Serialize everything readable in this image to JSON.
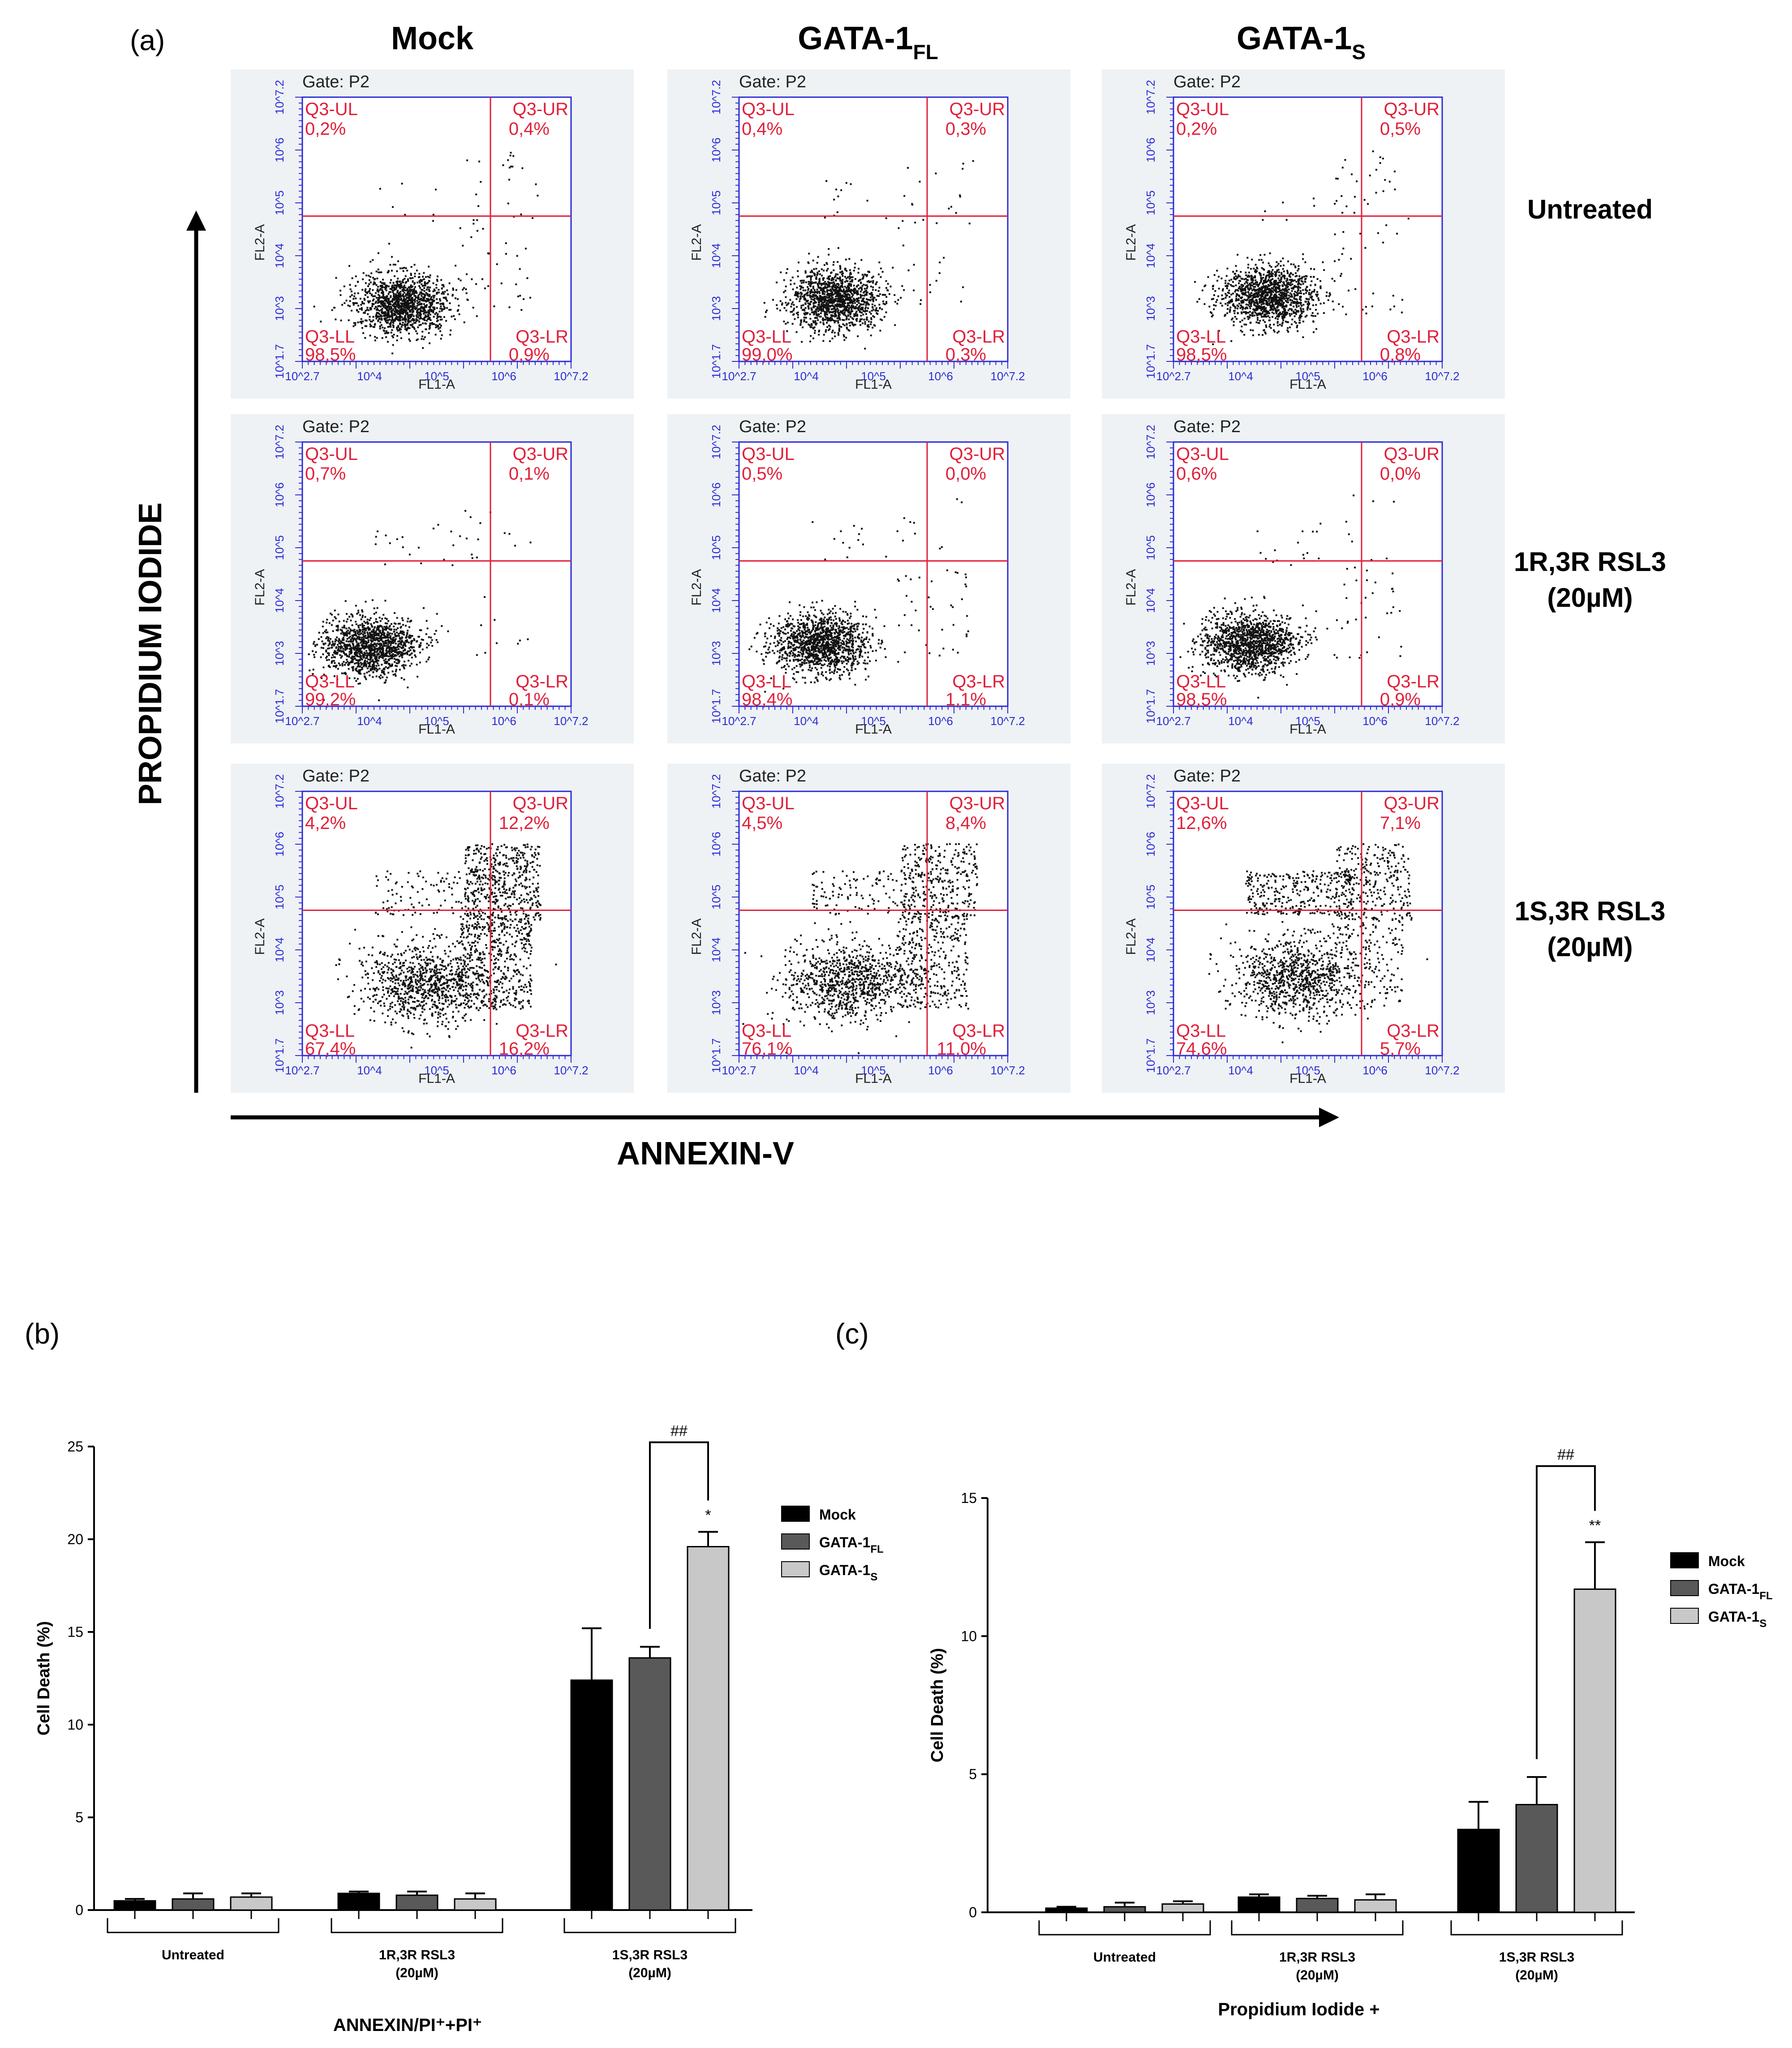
{
  "panel_a": {
    "label": "(a)",
    "columns": [
      {
        "base": "Mock",
        "sub": ""
      },
      {
        "base": "GATA-1",
        "sub": "FL"
      },
      {
        "base": "GATA-1",
        "sub": "S"
      }
    ],
    "rows": [
      {
        "line1": "Untreated",
        "line2": ""
      },
      {
        "line1": "1R,3R RSL3",
        "line2": "(20µM)"
      },
      {
        "line1": "1S,3R RSL3",
        "line2": "(20µM)"
      }
    ],
    "y_axis_title": "PROPIDIUM IODIDE",
    "x_axis_title": "ANNEXIN-V",
    "gate_label": "Gate: P2",
    "quadrant_names": {
      "ul": "Q3-UL",
      "ur": "Q3-UR",
      "ll": "Q3-LL",
      "lr": "Q3-LR"
    },
    "x_channel": "FL1-A",
    "y_channel": "FL2-A",
    "x_range": [
      "10^2.7",
      "10^7.2"
    ],
    "y_range": [
      "10^1.7",
      "10^7.2"
    ],
    "x_major_ticks": [
      "10^4",
      "10^5",
      "10^6"
    ],
    "y_major_ticks": [
      "10^3",
      "10^4",
      "10^5",
      "10^6"
    ],
    "plots": [
      [
        {
          "ul": "0,2%",
          "ur": "0,4%",
          "ll": "98,5%",
          "lr": "0,9%"
        },
        {
          "ul": "0,4%",
          "ur": "0,3%",
          "ll": "99,0%",
          "lr": "0,3%"
        },
        {
          "ul": "0,2%",
          "ur": "0,5%",
          "ll": "98,5%",
          "lr": "0,8%"
        }
      ],
      [
        {
          "ul": "0,7%",
          "ur": "0,1%",
          "ll": "99,2%",
          "lr": "0,1%"
        },
        {
          "ul": "0,5%",
          "ur": "0,0%",
          "ll": "98,4%",
          "lr": "1,1%"
        },
        {
          "ul": "0,6%",
          "ur": "0,0%",
          "ll": "98,5%",
          "lr": "0,9%"
        }
      ],
      [
        {
          "ul": "4,2%",
          "ur": "12,2%",
          "ll": "67,4%",
          "lr": "16,2%"
        },
        {
          "ul": "4,5%",
          "ur": "8,4%",
          "ll": "76,1%",
          "lr": "11,0%"
        },
        {
          "ul": "12,6%",
          "ur": "7,1%",
          "ll": "74,6%",
          "lr": "5,7%"
        }
      ]
    ]
  },
  "chart_data": [
    {
      "label": "(b)",
      "type": "bar",
      "categories": [
        {
          "line1": "Untreated",
          "line2": ""
        },
        {
          "line1": "1R,3R RSL3",
          "line2": "(20µM)"
        },
        {
          "line1": "1S,3R RSL3",
          "line2": "(20µM)"
        }
      ],
      "series": [
        {
          "name": "Mock",
          "sub": "",
          "color": "#000000",
          "values": [
            0.5,
            0.9,
            12.4
          ],
          "errors": [
            0.1,
            0.1,
            2.8
          ]
        },
        {
          "name": "GATA-1",
          "sub": "FL",
          "color": "#595959",
          "values": [
            0.6,
            0.8,
            13.6
          ],
          "errors": [
            0.3,
            0.2,
            0.6
          ]
        },
        {
          "name": "GATA-1",
          "sub": "S",
          "color": "#c8c8c8",
          "values": [
            0.7,
            0.6,
            19.6
          ],
          "errors": [
            0.2,
            0.3,
            0.8
          ]
        }
      ],
      "ylabel": "Cell Death (%)",
      "ylim": [
        0,
        25
      ],
      "yticks": [
        0,
        5,
        10,
        15,
        20,
        25
      ],
      "xlabel": "ANNEXIN/PI⁺+PI⁺",
      "legend_position": "right",
      "annotations": {
        "star": "*",
        "bracket": "##"
      }
    },
    {
      "label": "(c)",
      "type": "bar",
      "categories": [
        {
          "line1": "Untreated",
          "line2": ""
        },
        {
          "line1": "1R,3R RSL3",
          "line2": "(20µM)"
        },
        {
          "line1": "1S,3R RSL3",
          "line2": "(20µM)"
        }
      ],
      "series": [
        {
          "name": "Mock",
          "sub": "",
          "color": "#000000",
          "values": [
            0.15,
            0.55,
            3.0
          ],
          "errors": [
            0.05,
            0.1,
            1.0
          ]
        },
        {
          "name": "GATA-1",
          "sub": "FL",
          "color": "#595959",
          "values": [
            0.2,
            0.5,
            3.9
          ],
          "errors": [
            0.15,
            0.1,
            1.0
          ]
        },
        {
          "name": "GATA-1",
          "sub": "S",
          "color": "#c8c8c8",
          "values": [
            0.3,
            0.45,
            11.7
          ],
          "errors": [
            0.1,
            0.2,
            1.7
          ]
        }
      ],
      "ylabel": "Cell Death (%)",
      "ylim": [
        0,
        15
      ],
      "yticks": [
        0,
        5,
        10,
        15
      ],
      "xlabel": "Propidium Iodide +",
      "legend_position": "right",
      "annotations": {
        "star": "**",
        "bracket": "##"
      }
    }
  ]
}
